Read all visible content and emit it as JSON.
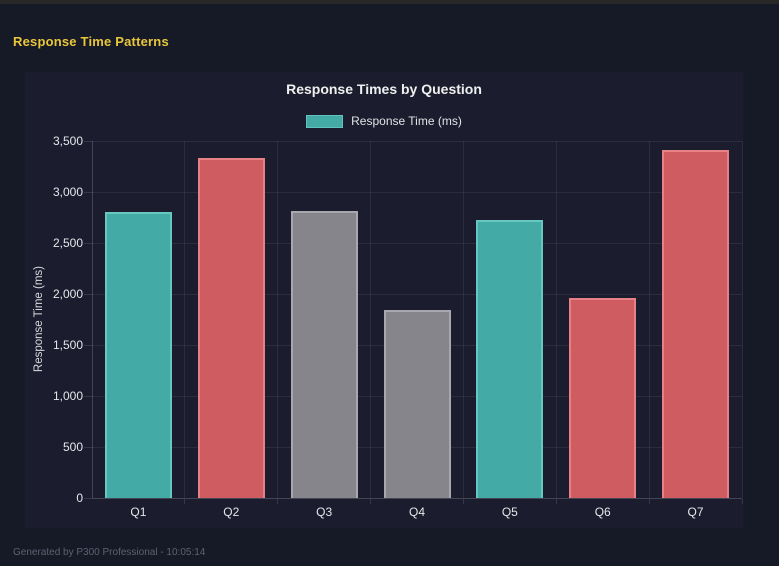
{
  "page": {
    "title": "Response Time Patterns",
    "footer": "Generated by P300 Professional - 10:05:14"
  },
  "chart_data": {
    "type": "bar",
    "title": "Response Times by Question",
    "legend": {
      "label": "Response Time (ms)",
      "color": "#44aaa5",
      "border_color": "#62c3be",
      "position": "top"
    },
    "categories": [
      "Q1",
      "Q2",
      "Q3",
      "Q4",
      "Q5",
      "Q6",
      "Q7"
    ],
    "values": [
      2800,
      3330,
      2810,
      1840,
      2730,
      1960,
      3410
    ],
    "bar_fill_colors": [
      "#44aaa5",
      "#cf5c61",
      "#85858b",
      "#85858b",
      "#44aaa5",
      "#cf5c61",
      "#cf5c61"
    ],
    "bar_border_colors": [
      "#67c8c2",
      "#e88186",
      "#a7a7ad",
      "#a7a7ad",
      "#67c8c2",
      "#e88186",
      "#e88186"
    ],
    "xlabel": "",
    "ylabel": "Response Time (ms)",
    "ylim": [
      0,
      3500
    ],
    "ytick_step": 500,
    "ytick_labels": [
      "0",
      "500",
      "1,000",
      "1,500",
      "2,000",
      "2,500",
      "3,000",
      "3,500"
    ],
    "grid": true
  },
  "colors": {
    "page_background": "#161926",
    "panel_background": "#1b1d2e",
    "heading_yellow": "#e9c73b",
    "text_light": "#e6e6ea",
    "footer_gray": "#5d6172"
  }
}
